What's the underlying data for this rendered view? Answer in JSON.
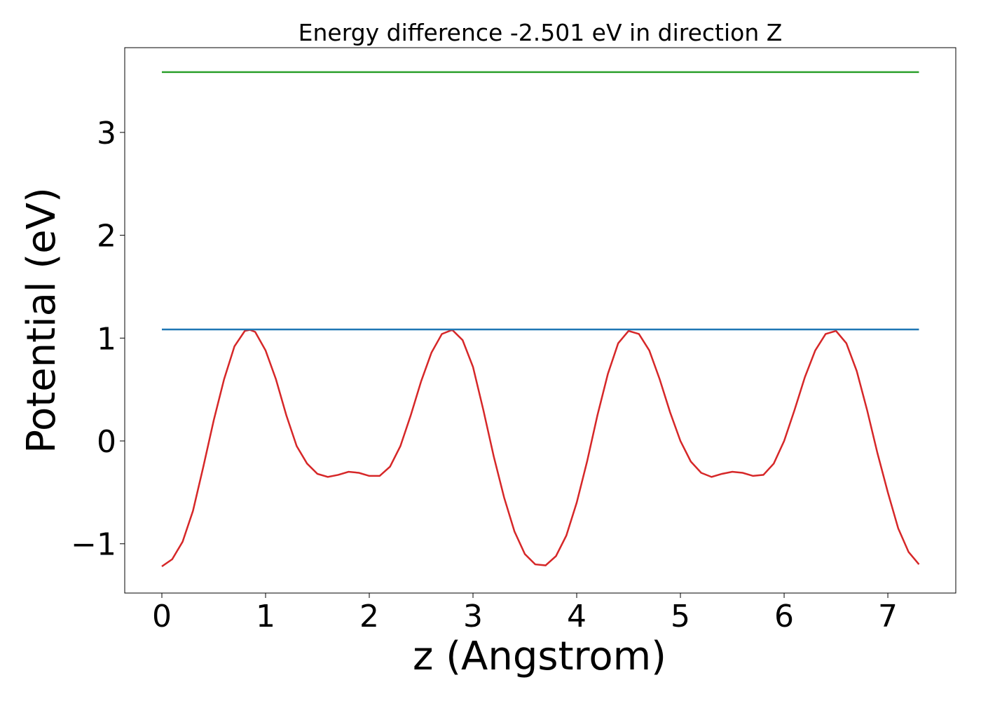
{
  "chart_data": {
    "type": "line",
    "title": "Energy difference -2.501 eV in direction Z",
    "xlabel": "z (Angstrom)",
    "ylabel": "Potential (eV)",
    "xlim": [
      -0.358,
      7.655
    ],
    "ylim": [
      -1.479,
      3.824
    ],
    "xticks": [
      0,
      1,
      2,
      3,
      4,
      5,
      6,
      7
    ],
    "yticks": [
      {
        "value": -1,
        "label": "−1"
      },
      0,
      1,
      2,
      3
    ],
    "series": [
      {
        "color": "#d62728",
        "x": [
          0,
          0.1,
          0.2,
          0.3,
          0.4,
          0.5,
          0.6,
          0.7,
          0.8,
          0.85,
          0.9,
          1.0,
          1.1,
          1.2,
          1.3,
          1.4,
          1.5,
          1.6,
          1.7,
          1.8,
          1.9,
          2.0,
          2.1,
          2.2,
          2.3,
          2.4,
          2.5,
          2.6,
          2.7,
          2.8,
          2.9,
          3.0,
          3.1,
          3.2,
          3.3,
          3.4,
          3.5,
          3.6,
          3.7,
          3.8,
          3.9,
          4.0,
          4.1,
          4.2,
          4.3,
          4.4,
          4.5,
          4.6,
          4.7,
          4.8,
          4.9,
          5.0,
          5.1,
          5.2,
          5.3,
          5.4,
          5.5,
          5.6,
          5.7,
          5.8,
          5.9,
          6.0,
          6.1,
          6.2,
          6.3,
          6.4,
          6.5,
          6.6,
          6.7,
          6.8,
          6.9,
          7.0,
          7.1,
          7.2,
          7.3
        ],
        "values": [
          -1.22,
          -1.15,
          -0.98,
          -0.68,
          -0.25,
          0.2,
          0.6,
          0.92,
          1.07,
          1.08,
          1.06,
          0.88,
          0.6,
          0.25,
          -0.05,
          -0.22,
          -0.32,
          -0.35,
          -0.33,
          -0.3,
          -0.31,
          -0.34,
          -0.34,
          -0.25,
          -0.05,
          0.25,
          0.58,
          0.86,
          1.04,
          1.08,
          0.98,
          0.72,
          0.3,
          -0.15,
          -0.55,
          -0.88,
          -1.1,
          -1.2,
          -1.21,
          -1.12,
          -0.92,
          -0.6,
          -0.2,
          0.25,
          0.65,
          0.95,
          1.07,
          1.04,
          0.88,
          0.6,
          0.28,
          0.0,
          -0.2,
          -0.31,
          -0.35,
          -0.32,
          -0.3,
          -0.31,
          -0.34,
          -0.33,
          -0.22,
          0.0,
          0.3,
          0.62,
          0.88,
          1.04,
          1.07,
          0.95,
          0.68,
          0.3,
          -0.12,
          -0.5,
          -0.85,
          -1.08,
          -1.2
        ]
      },
      {
        "color": "#1f77b4",
        "x": [
          0,
          7.3
        ],
        "values": [
          1.084,
          1.084
        ]
      },
      {
        "color": "#2ca02c",
        "x": [
          0,
          7.3
        ],
        "values": [
          3.586,
          3.586
        ]
      }
    ]
  }
}
